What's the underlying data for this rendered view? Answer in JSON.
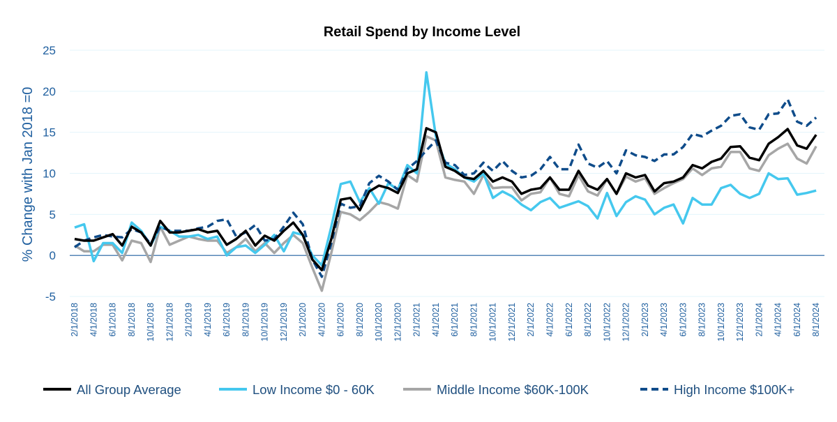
{
  "chart_data": {
    "type": "line",
    "title": "Retail Spend by Income Level",
    "xlabel": "",
    "ylabel": "% Change with Jan 2018 =0",
    "ylim": [
      -5,
      25
    ],
    "yticks": [
      "-5",
      "0",
      "5",
      "10",
      "15",
      "20",
      "25"
    ],
    "grid": true,
    "legend_position": "bottom",
    "x_start": "2/1/2018",
    "x_frequency": "monthly",
    "x_tick_labels": [
      "2/1/2018",
      "4/1/2018",
      "6/1/2018",
      "8/1/2018",
      "10/1/2018",
      "12/1/2018",
      "2/1/2019",
      "4/1/2019",
      "6/1/2019",
      "8/1/2019",
      "10/1/2019",
      "12/1/2019",
      "2/1/2020",
      "4/1/2020",
      "6/1/2020",
      "8/1/2020",
      "10/1/2020",
      "12/1/2020",
      "2/1/2021",
      "4/1/2021",
      "6/1/2021",
      "8/1/2021",
      "10/1/2021",
      "12/1/2021",
      "2/1/2022",
      "4/1/2022",
      "6/1/2022",
      "8/1/2022",
      "10/1/2022",
      "12/1/2022",
      "2/1/2023",
      "4/1/2023",
      "6/1/2023",
      "8/1/2023",
      "10/1/2023",
      "12/1/2023",
      "2/1/2024",
      "4/1/2024",
      "6/1/2024",
      "8/1/2024"
    ],
    "series": [
      {
        "name": "All Group Average",
        "color": "#000000",
        "dash": false,
        "width": 3.5,
        "values": [
          2.0,
          1.8,
          1.8,
          2.2,
          2.6,
          1.2,
          3.5,
          2.8,
          1.2,
          4.2,
          2.8,
          2.8,
          3.0,
          3.2,
          2.8,
          3.0,
          1.3,
          2.0,
          3.0,
          1.2,
          2.4,
          1.8,
          3.0,
          4.0,
          2.5,
          -0.5,
          -1.8,
          2.0,
          6.8,
          7.0,
          5.5,
          7.8,
          8.5,
          8.2,
          7.6,
          10.0,
          10.5,
          15.5,
          15.0,
          10.8,
          10.3,
          9.5,
          9.3,
          10.3,
          9.0,
          9.5,
          9.0,
          7.5,
          8.0,
          8.2,
          9.5,
          8.0,
          8.0,
          10.3,
          8.5,
          8.0,
          9.3,
          7.5,
          10.0,
          9.5,
          9.8,
          7.8,
          8.8,
          9.0,
          9.5,
          11.0,
          10.6,
          11.4,
          11.8,
          13.2,
          13.3,
          11.9,
          11.6,
          13.6,
          14.4,
          15.4,
          13.4,
          13.0,
          14.7
        ]
      },
      {
        "name": "Low Income $0 - 60K",
        "color": "#45c8ee",
        "dash": false,
        "width": 3.5,
        "values": [
          3.4,
          3.8,
          -0.7,
          1.5,
          1.5,
          0.3,
          4.0,
          3.0,
          1.2,
          3.5,
          3.0,
          2.3,
          2.3,
          2.5,
          2.0,
          2.3,
          0.0,
          1.0,
          1.2,
          0.3,
          1.3,
          2.5,
          0.5,
          2.8,
          2.5,
          0.0,
          -1.2,
          3.5,
          8.7,
          9.0,
          6.5,
          8.2,
          6.3,
          8.8,
          8.0,
          11.0,
          10.0,
          22.3,
          14.5,
          11.2,
          10.5,
          9.5,
          9.0,
          10.0,
          7.0,
          7.8,
          7.2,
          6.2,
          5.5,
          6.5,
          7.0,
          5.8,
          6.2,
          6.6,
          6.0,
          4.5,
          7.6,
          4.8,
          6.5,
          7.2,
          6.8,
          5.0,
          5.8,
          6.2,
          3.9,
          7.0,
          6.2,
          6.2,
          8.2,
          8.6,
          7.5,
          7.0,
          7.5,
          10.0,
          9.3,
          9.4,
          7.4,
          7.6,
          7.9
        ]
      },
      {
        "name": "Middle Income $60K-100K",
        "color": "#a6a6a6",
        "dash": false,
        "width": 3.5,
        "values": [
          1.2,
          0.5,
          0.5,
          1.3,
          1.3,
          -0.6,
          1.8,
          1.5,
          -0.8,
          3.5,
          1.3,
          1.8,
          2.3,
          2.0,
          1.8,
          1.8,
          0.3,
          1.0,
          2.0,
          0.5,
          1.5,
          0.3,
          1.5,
          2.5,
          1.5,
          -1.5,
          -4.3,
          0.3,
          5.3,
          5.0,
          4.3,
          5.3,
          6.5,
          6.2,
          5.7,
          9.8,
          9.0,
          14.5,
          14.0,
          9.5,
          9.2,
          9.0,
          7.5,
          9.8,
          8.2,
          8.3,
          8.3,
          6.7,
          7.5,
          7.7,
          9.5,
          7.5,
          7.2,
          9.8,
          7.8,
          7.3,
          9.3,
          7.5,
          9.6,
          9.0,
          9.4,
          7.5,
          8.2,
          8.8,
          9.3,
          10.6,
          9.8,
          10.6,
          10.8,
          12.6,
          12.6,
          10.6,
          10.3,
          12.2,
          13.0,
          13.6,
          11.8,
          11.2,
          13.3
        ]
      },
      {
        "name": "High Income $100K+",
        "color": "#0f4c8a",
        "dash": true,
        "width": 3.5,
        "values": [
          1.0,
          1.8,
          2.2,
          2.5,
          2.3,
          2.2,
          3.2,
          2.8,
          1.4,
          3.5,
          3.0,
          3.0,
          3.0,
          3.3,
          3.5,
          4.2,
          4.4,
          2.3,
          2.8,
          3.7,
          1.8,
          2.0,
          3.5,
          5.2,
          3.8,
          -0.5,
          -2.6,
          1.5,
          6.3,
          5.8,
          6.0,
          8.8,
          9.7,
          9.0,
          8.0,
          10.5,
          11.5,
          12.8,
          14.0,
          11.3,
          11.0,
          9.8,
          10.0,
          11.3,
          10.3,
          11.5,
          10.3,
          9.5,
          9.7,
          10.5,
          12.0,
          10.5,
          10.5,
          13.5,
          11.2,
          10.7,
          11.5,
          10.0,
          12.8,
          12.2,
          12.0,
          11.5,
          12.3,
          12.3,
          13.2,
          14.8,
          14.5,
          15.2,
          15.8,
          17.0,
          17.2,
          15.6,
          15.3,
          17.2,
          17.3,
          19.0,
          16.3,
          15.8,
          16.8
        ]
      }
    ]
  }
}
